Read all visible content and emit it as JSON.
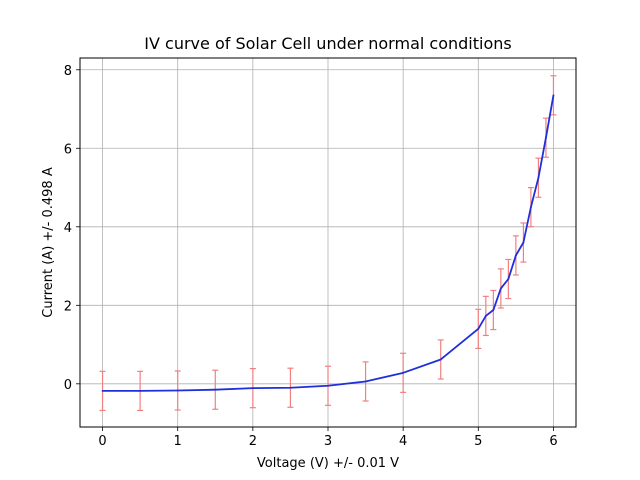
{
  "chart_data": {
    "type": "line",
    "title": "IV curve of Solar Cell under normal conditions",
    "xlabel": "Voltage (V) +/- 0.01 V",
    "ylabel": "Current (A) +/- 0.498 A",
    "xlim": [
      -0.3,
      6.3
    ],
    "ylim": [
      -1.1,
      8.3
    ],
    "xticks": [
      0,
      1,
      2,
      3,
      4,
      5,
      6
    ],
    "yticks": [
      0,
      2,
      4,
      6,
      8
    ],
    "grid": true,
    "series": [
      {
        "color": "#1f2fdc",
        "error_bar_color": "#f08080",
        "y_error": 0.498,
        "x": [
          0,
          0.5,
          1,
          1.5,
          2,
          2.5,
          3,
          3.5,
          4,
          4.5,
          5,
          5.1,
          5.2,
          5.3,
          5.4,
          5.5,
          5.6,
          5.7,
          5.8,
          5.9,
          6
        ],
        "y": [
          -0.18,
          -0.18,
          -0.17,
          -0.15,
          -0.11,
          -0.1,
          -0.05,
          0.06,
          0.28,
          0.62,
          1.4,
          1.73,
          1.88,
          2.43,
          2.67,
          3.27,
          3.6,
          4.5,
          5.25,
          6.27,
          7.35
        ]
      }
    ]
  }
}
